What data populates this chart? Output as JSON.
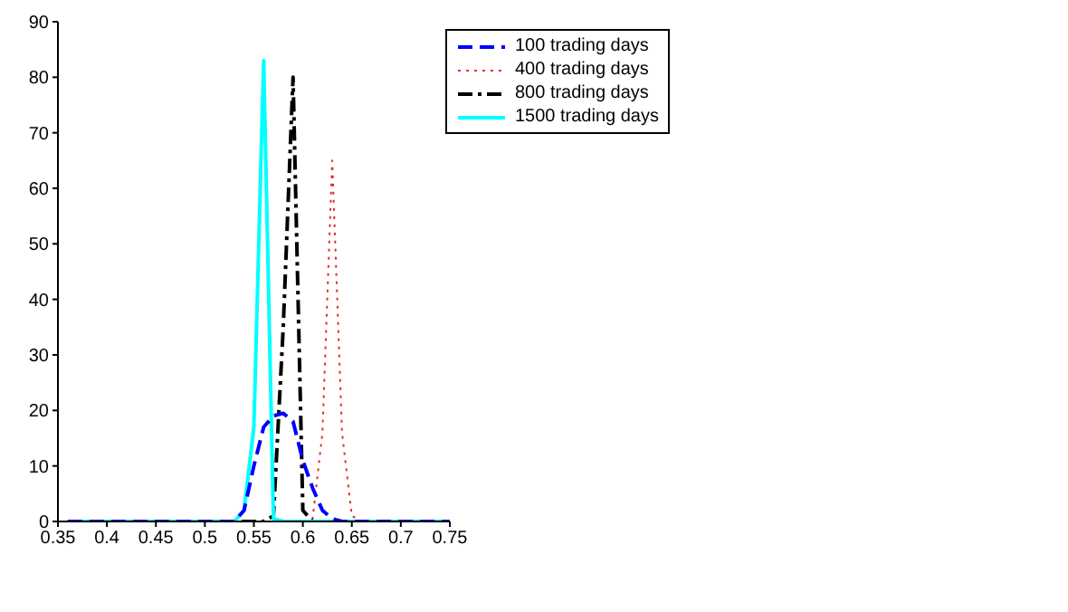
{
  "chart_data": {
    "type": "line",
    "xlim": [
      0.35,
      0.75
    ],
    "xticks": [
      0.35,
      0.4,
      0.45,
      0.5,
      0.55,
      0.6,
      0.65,
      0.7,
      0.75
    ],
    "ylim": [
      0,
      90
    ],
    "yticks": [
      0,
      10,
      20,
      30,
      40,
      50,
      60,
      70,
      80,
      90
    ],
    "legend": "top right",
    "grid": false,
    "marker": "none",
    "series": [
      {
        "name": "100 trading days",
        "color": "#0000ff",
        "line_style": "dashed",
        "x": [
          0.36,
          0.53,
          0.54,
          0.55,
          0.56,
          0.57,
          0.58,
          0.59,
          0.6,
          0.61,
          0.62,
          0.63,
          0.64,
          0.75
        ],
        "values": [
          0,
          0,
          2,
          10,
          17,
          19,
          19.5,
          18,
          11,
          6,
          2,
          0.5,
          0,
          0
        ]
      },
      {
        "name": "400 trading days",
        "color": "#e03030",
        "line_style": "dotted",
        "x": [
          0.36,
          0.6,
          0.61,
          0.62,
          0.63,
          0.64,
          0.65,
          0.66,
          0.75
        ],
        "values": [
          0,
          0,
          0.5,
          16,
          65,
          16,
          1,
          0,
          0
        ]
      },
      {
        "name": "800 trading days",
        "color": "#000000",
        "line_style": "dashdot",
        "x": [
          0.36,
          0.56,
          0.57,
          0.58,
          0.59,
          0.6,
          0.61,
          0.75
        ],
        "values": [
          0,
          0,
          1,
          35,
          80,
          2,
          0,
          0
        ]
      },
      {
        "name": "1500 trading days",
        "color": "#00ffff",
        "line_style": "solid",
        "x": [
          0.36,
          0.53,
          0.54,
          0.55,
          0.56,
          0.57,
          0.58,
          0.75
        ],
        "values": [
          0,
          0,
          2,
          17,
          83,
          0.5,
          0,
          0
        ]
      }
    ]
  }
}
